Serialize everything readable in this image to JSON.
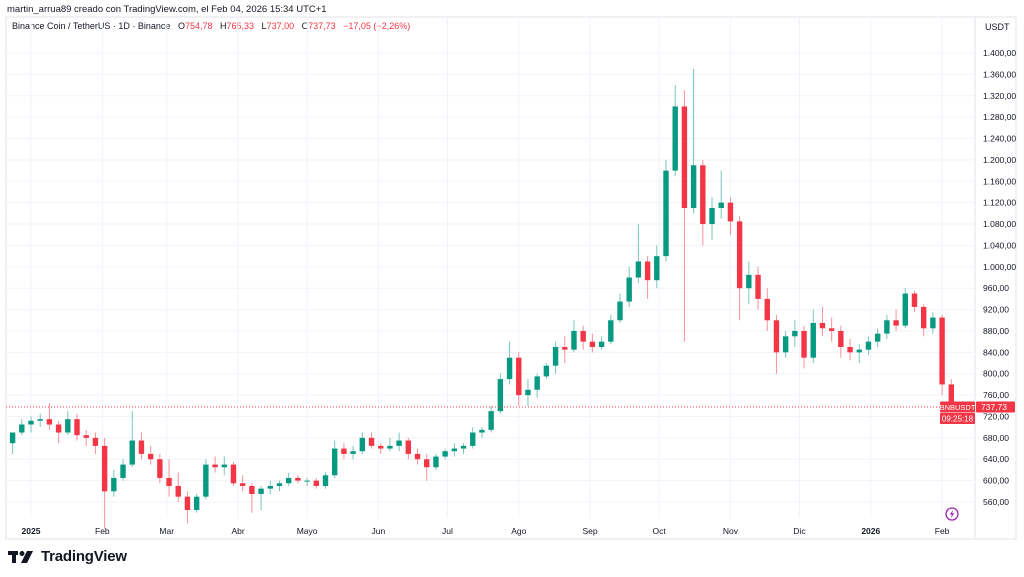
{
  "caption": "martin_arrua89 creado con TradingView.com, el Feb 04, 2026 15:34 UTC+1",
  "legend": {
    "symbol_title": "Binance Coin / TetherUS · 1D · Binance",
    "open_label": "O",
    "open": "754,78",
    "high_label": "H",
    "high": "765,33",
    "low_label": "L",
    "low": "737,00",
    "close_label": "C",
    "close": "737,73",
    "change": "−17,05 (−2,26%)"
  },
  "currency": "USDT",
  "last_price": {
    "symbol": "BNBUSDT",
    "price": "737,73",
    "value": 737.73,
    "countdown": "09:25:18",
    "color": "#f23645"
  },
  "brand": {
    "name": "TradingView"
  },
  "icons": {
    "event": "lightning-icon"
  },
  "colors": {
    "up": "#089981",
    "down": "#f23645",
    "grid": "#f0f3fa",
    "event": "#9c27b0"
  },
  "chart_data": {
    "type": "candlestick",
    "ylim": [
      530,
      1420
    ],
    "xlim": [
      "2024-12-22",
      "2026-02-04"
    ],
    "grid": true,
    "y_ticks": [
      560,
      600,
      640,
      680,
      720,
      760,
      800,
      840,
      880,
      920,
      960,
      1000,
      1040,
      1080,
      1120,
      1160,
      1200,
      1240,
      1280,
      1320,
      1360,
      1400
    ],
    "y_tick_labels": [
      "560,00",
      "600,00",
      "640,00",
      "680,00",
      "720,00",
      "760,00",
      "800,00",
      "840,00",
      "880,00",
      "920,00",
      "960,00",
      "1.000,00",
      "1.040,00",
      "1.080,00",
      "1.120,00",
      "1.160,00",
      "1.200,00",
      "1.240,00",
      "1.280,00",
      "1.320,00",
      "1.360,00",
      "1.400,00"
    ],
    "x_ticks": [
      {
        "date": "2025-01-01",
        "label": "2025",
        "bold": true
      },
      {
        "date": "2025-02-01",
        "label": "Feb"
      },
      {
        "date": "2025-03-01",
        "label": "Mar"
      },
      {
        "date": "2025-04-01",
        "label": "Abr"
      },
      {
        "date": "2025-05-01",
        "label": "Mayo"
      },
      {
        "date": "2025-06-01",
        "label": "Jun"
      },
      {
        "date": "2025-07-01",
        "label": "Jul"
      },
      {
        "date": "2025-08-01",
        "label": "Ago"
      },
      {
        "date": "2025-09-01",
        "label": "Sep"
      },
      {
        "date": "2025-10-01",
        "label": "Oct"
      },
      {
        "date": "2025-11-01",
        "label": "Nov"
      },
      {
        "date": "2025-12-01",
        "label": "Dic"
      },
      {
        "date": "2026-01-01",
        "label": "2026",
        "bold": true
      },
      {
        "date": "2026-02-01",
        "label": "Feb"
      }
    ],
    "candles": [
      [
        "2024-12-22",
        670,
        690,
        650,
        690
      ],
      [
        "2024-12-26",
        690,
        715,
        685,
        705
      ],
      [
        "2024-12-30",
        705,
        720,
        690,
        712
      ],
      [
        "2025-01-03",
        712,
        725,
        700,
        715
      ],
      [
        "2025-01-07",
        715,
        745,
        695,
        705
      ],
      [
        "2025-01-11",
        705,
        712,
        670,
        690
      ],
      [
        "2025-01-15",
        690,
        730,
        685,
        715
      ],
      [
        "2025-01-19",
        715,
        725,
        675,
        685
      ],
      [
        "2025-01-23",
        685,
        695,
        665,
        680
      ],
      [
        "2025-01-27",
        680,
        690,
        650,
        665
      ],
      [
        "2025-01-31",
        665,
        680,
        510,
        580
      ],
      [
        "2025-02-04",
        580,
        620,
        570,
        605
      ],
      [
        "2025-02-08",
        605,
        640,
        600,
        630
      ],
      [
        "2025-02-12",
        630,
        730,
        625,
        675
      ],
      [
        "2025-02-16",
        675,
        690,
        640,
        650
      ],
      [
        "2025-02-20",
        650,
        665,
        630,
        640
      ],
      [
        "2025-02-24",
        640,
        650,
        595,
        605
      ],
      [
        "2025-02-28",
        605,
        640,
        570,
        590
      ],
      [
        "2025-03-04",
        590,
        615,
        560,
        570
      ],
      [
        "2025-03-08",
        570,
        580,
        520,
        545
      ],
      [
        "2025-03-12",
        545,
        575,
        540,
        570
      ],
      [
        "2025-03-16",
        570,
        640,
        565,
        630
      ],
      [
        "2025-03-20",
        630,
        645,
        615,
        625
      ],
      [
        "2025-03-24",
        625,
        645,
        610,
        630
      ],
      [
        "2025-03-28",
        630,
        635,
        590,
        595
      ],
      [
        "2025-04-01",
        595,
        610,
        580,
        590
      ],
      [
        "2025-04-05",
        590,
        595,
        540,
        575
      ],
      [
        "2025-04-09",
        575,
        590,
        545,
        585
      ],
      [
        "2025-04-13",
        585,
        600,
        575,
        590
      ],
      [
        "2025-04-17",
        590,
        600,
        580,
        595
      ],
      [
        "2025-04-21",
        595,
        615,
        590,
        605
      ],
      [
        "2025-04-25",
        605,
        610,
        595,
        600
      ],
      [
        "2025-04-29",
        600,
        605,
        590,
        600
      ],
      [
        "2025-05-03",
        600,
        605,
        585,
        590
      ],
      [
        "2025-05-07",
        590,
        615,
        585,
        610
      ],
      [
        "2025-05-11",
        610,
        675,
        605,
        660
      ],
      [
        "2025-05-15",
        660,
        670,
        640,
        650
      ],
      [
        "2025-05-19",
        650,
        665,
        640,
        655
      ],
      [
        "2025-05-23",
        655,
        690,
        650,
        680
      ],
      [
        "2025-05-27",
        680,
        690,
        660,
        665
      ],
      [
        "2025-05-31",
        665,
        670,
        650,
        660
      ],
      [
        "2025-06-04",
        660,
        680,
        655,
        665
      ],
      [
        "2025-06-08",
        665,
        690,
        655,
        675
      ],
      [
        "2025-06-12",
        675,
        680,
        640,
        650
      ],
      [
        "2025-06-16",
        650,
        660,
        630,
        640
      ],
      [
        "2025-06-20",
        640,
        650,
        600,
        625
      ],
      [
        "2025-06-24",
        625,
        650,
        620,
        645
      ],
      [
        "2025-06-28",
        645,
        660,
        640,
        655
      ],
      [
        "2025-07-02",
        655,
        670,
        645,
        660
      ],
      [
        "2025-07-06",
        660,
        670,
        650,
        665
      ],
      [
        "2025-07-10",
        665,
        700,
        660,
        690
      ],
      [
        "2025-07-14",
        690,
        700,
        680,
        695
      ],
      [
        "2025-07-18",
        695,
        740,
        690,
        730
      ],
      [
        "2025-07-22",
        730,
        800,
        725,
        790
      ],
      [
        "2025-07-26",
        790,
        860,
        780,
        830
      ],
      [
        "2025-07-30",
        830,
        840,
        740,
        760
      ],
      [
        "2025-08-03",
        760,
        790,
        740,
        770
      ],
      [
        "2025-08-07",
        770,
        800,
        755,
        795
      ],
      [
        "2025-08-11",
        795,
        820,
        790,
        815
      ],
      [
        "2025-08-15",
        815,
        860,
        800,
        850
      ],
      [
        "2025-08-19",
        850,
        870,
        820,
        845
      ],
      [
        "2025-08-23",
        845,
        900,
        840,
        880
      ],
      [
        "2025-08-27",
        880,
        890,
        845,
        860
      ],
      [
        "2025-08-31",
        860,
        875,
        840,
        850
      ],
      [
        "2025-09-04",
        850,
        870,
        845,
        860
      ],
      [
        "2025-09-08",
        860,
        910,
        855,
        900
      ],
      [
        "2025-09-12",
        900,
        950,
        895,
        935
      ],
      [
        "2025-09-16",
        935,
        1000,
        925,
        980
      ],
      [
        "2025-09-20",
        980,
        1080,
        970,
        1010
      ],
      [
        "2025-09-24",
        1010,
        1020,
        940,
        975
      ],
      [
        "2025-09-28",
        975,
        1040,
        960,
        1020
      ],
      [
        "2025-10-02",
        1020,
        1200,
        1010,
        1180
      ],
      [
        "2025-10-06",
        1180,
        1340,
        1170,
        1300
      ],
      [
        "2025-10-10",
        1300,
        1330,
        860,
        1110
      ],
      [
        "2025-10-14",
        1110,
        1370,
        1100,
        1190
      ],
      [
        "2025-10-18",
        1190,
        1200,
        1040,
        1080
      ],
      [
        "2025-10-22",
        1080,
        1130,
        1050,
        1110
      ],
      [
        "2025-10-26",
        1110,
        1180,
        1090,
        1120
      ],
      [
        "2025-10-30",
        1120,
        1130,
        1060,
        1085
      ],
      [
        "2025-11-03",
        1085,
        1095,
        900,
        960
      ],
      [
        "2025-11-07",
        960,
        1010,
        930,
        985
      ],
      [
        "2025-11-11",
        985,
        1000,
        920,
        940
      ],
      [
        "2025-11-15",
        940,
        960,
        880,
        900
      ],
      [
        "2025-11-19",
        900,
        910,
        800,
        840
      ],
      [
        "2025-11-23",
        840,
        880,
        830,
        870
      ],
      [
        "2025-11-27",
        870,
        900,
        850,
        880
      ],
      [
        "2025-12-01",
        880,
        890,
        810,
        830
      ],
      [
        "2025-12-05",
        830,
        920,
        820,
        895
      ],
      [
        "2025-12-09",
        895,
        925,
        870,
        885
      ],
      [
        "2025-12-13",
        885,
        905,
        860,
        880
      ],
      [
        "2025-12-17",
        880,
        890,
        830,
        850
      ],
      [
        "2025-12-21",
        850,
        865,
        825,
        840
      ],
      [
        "2025-12-25",
        840,
        855,
        820,
        845
      ],
      [
        "2025-12-29",
        845,
        870,
        835,
        860
      ],
      [
        "2026-01-02",
        860,
        885,
        850,
        875
      ],
      [
        "2026-01-06",
        875,
        910,
        865,
        900
      ],
      [
        "2026-01-10",
        900,
        920,
        880,
        890
      ],
      [
        "2026-01-14",
        890,
        960,
        885,
        950
      ],
      [
        "2026-01-18",
        950,
        955,
        915,
        925
      ],
      [
        "2026-01-22",
        925,
        930,
        870,
        885
      ],
      [
        "2026-01-26",
        885,
        915,
        875,
        905
      ],
      [
        "2026-01-30",
        905,
        910,
        760,
        780
      ],
      [
        "2026-02-03",
        780,
        790,
        735,
        738
      ]
    ]
  }
}
